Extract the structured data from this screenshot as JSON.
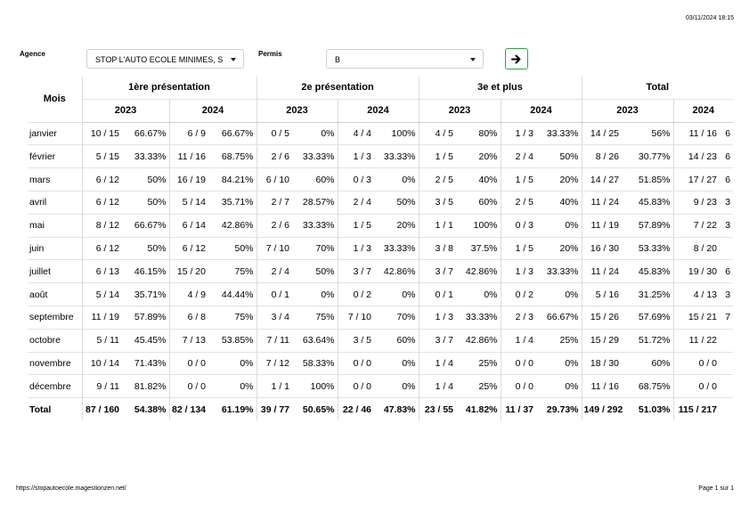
{
  "header": {
    "timestamp": "03/11/2024 18:15"
  },
  "filters": {
    "agency_label": "Agence",
    "agency_value": "STOP L'AUTO ECOLE MINIMES, S",
    "permit_label": "Permis",
    "permit_value": "B"
  },
  "table": {
    "month_header": "Mois",
    "groups": [
      "1ère présentation",
      "2e présentation",
      "3e et plus",
      "Total"
    ],
    "years": [
      "2023",
      "2024",
      "2023",
      "2024",
      "2023",
      "2024",
      "2023",
      "2024"
    ],
    "rows": [
      {
        "month": "janvier",
        "cells": [
          [
            "10 / 15",
            "66.67%"
          ],
          [
            "6 / 9",
            "66.67%"
          ],
          [
            "0 / 5",
            "0%"
          ],
          [
            "4 / 4",
            "100%"
          ],
          [
            "4 / 5",
            "80%"
          ],
          [
            "1 / 3",
            "33.33%"
          ],
          [
            "14 / 25",
            "56%"
          ],
          [
            "11 / 16",
            "6"
          ]
        ]
      },
      {
        "month": "février",
        "cells": [
          [
            "5 / 15",
            "33.33%"
          ],
          [
            "11 / 16",
            "68.75%"
          ],
          [
            "2 / 6",
            "33.33%"
          ],
          [
            "1 / 3",
            "33.33%"
          ],
          [
            "1 / 5",
            "20%"
          ],
          [
            "2 / 4",
            "50%"
          ],
          [
            "8 / 26",
            "30.77%"
          ],
          [
            "14 / 23",
            "6"
          ]
        ]
      },
      {
        "month": "mars",
        "cells": [
          [
            "6 / 12",
            "50%"
          ],
          [
            "16 / 19",
            "84.21%"
          ],
          [
            "6 / 10",
            "60%"
          ],
          [
            "0 / 3",
            "0%"
          ],
          [
            "2 / 5",
            "40%"
          ],
          [
            "1 / 5",
            "20%"
          ],
          [
            "14 / 27",
            "51.85%"
          ],
          [
            "17 / 27",
            "6"
          ]
        ]
      },
      {
        "month": "avril",
        "cells": [
          [
            "6 / 12",
            "50%"
          ],
          [
            "5 / 14",
            "35.71%"
          ],
          [
            "2 / 7",
            "28.57%"
          ],
          [
            "2 / 4",
            "50%"
          ],
          [
            "3 / 5",
            "60%"
          ],
          [
            "2 / 5",
            "40%"
          ],
          [
            "11 / 24",
            "45.83%"
          ],
          [
            "9 / 23",
            "3"
          ]
        ]
      },
      {
        "month": "mai",
        "cells": [
          [
            "8 / 12",
            "66.67%"
          ],
          [
            "6 / 14",
            "42.86%"
          ],
          [
            "2 / 6",
            "33.33%"
          ],
          [
            "1 / 5",
            "20%"
          ],
          [
            "1 / 1",
            "100%"
          ],
          [
            "0 / 3",
            "0%"
          ],
          [
            "11 / 19",
            "57.89%"
          ],
          [
            "7 / 22",
            "3"
          ]
        ]
      },
      {
        "month": "juin",
        "cells": [
          [
            "6 / 12",
            "50%"
          ],
          [
            "6 / 12",
            "50%"
          ],
          [
            "7 / 10",
            "70%"
          ],
          [
            "1 / 3",
            "33.33%"
          ],
          [
            "3 / 8",
            "37.5%"
          ],
          [
            "1 / 5",
            "20%"
          ],
          [
            "16 / 30",
            "53.33%"
          ],
          [
            "8 / 20",
            ""
          ]
        ]
      },
      {
        "month": "juillet",
        "cells": [
          [
            "6 / 13",
            "46.15%"
          ],
          [
            "15 / 20",
            "75%"
          ],
          [
            "2 / 4",
            "50%"
          ],
          [
            "3 / 7",
            "42.86%"
          ],
          [
            "3 / 7",
            "42.86%"
          ],
          [
            "1 / 3",
            "33.33%"
          ],
          [
            "11 / 24",
            "45.83%"
          ],
          [
            "19 / 30",
            "6"
          ]
        ]
      },
      {
        "month": "août",
        "cells": [
          [
            "5 / 14",
            "35.71%"
          ],
          [
            "4 / 9",
            "44.44%"
          ],
          [
            "0 / 1",
            "0%"
          ],
          [
            "0 / 2",
            "0%"
          ],
          [
            "0 / 1",
            "0%"
          ],
          [
            "0 / 2",
            "0%"
          ],
          [
            "5 / 16",
            "31.25%"
          ],
          [
            "4 / 13",
            "3"
          ]
        ]
      },
      {
        "month": "septembre",
        "cells": [
          [
            "11 / 19",
            "57.89%"
          ],
          [
            "6 / 8",
            "75%"
          ],
          [
            "3 / 4",
            "75%"
          ],
          [
            "7 / 10",
            "70%"
          ],
          [
            "1 / 3",
            "33.33%"
          ],
          [
            "2 / 3",
            "66.67%"
          ],
          [
            "15 / 26",
            "57.69%"
          ],
          [
            "15 / 21",
            "7"
          ]
        ]
      },
      {
        "month": "octobre",
        "cells": [
          [
            "5 / 11",
            "45.45%"
          ],
          [
            "7 / 13",
            "53.85%"
          ],
          [
            "7 / 11",
            "63.64%"
          ],
          [
            "3 / 5",
            "60%"
          ],
          [
            "3 / 7",
            "42.86%"
          ],
          [
            "1 / 4",
            "25%"
          ],
          [
            "15 / 29",
            "51.72%"
          ],
          [
            "11 / 22",
            ""
          ]
        ]
      },
      {
        "month": "novembre",
        "cells": [
          [
            "10 / 14",
            "71.43%"
          ],
          [
            "0 / 0",
            "0%"
          ],
          [
            "7 / 12",
            "58.33%"
          ],
          [
            "0 / 0",
            "0%"
          ],
          [
            "1 / 4",
            "25%"
          ],
          [
            "0 / 0",
            "0%"
          ],
          [
            "18 / 30",
            "60%"
          ],
          [
            "0 / 0",
            ""
          ]
        ]
      },
      {
        "month": "décembre",
        "cells": [
          [
            "9 / 11",
            "81.82%"
          ],
          [
            "0 / 0",
            "0%"
          ],
          [
            "1 / 1",
            "100%"
          ],
          [
            "0 / 0",
            "0%"
          ],
          [
            "1 / 4",
            "25%"
          ],
          [
            "0 / 0",
            "0%"
          ],
          [
            "11 / 16",
            "68.75%"
          ],
          [
            "0 / 0",
            ""
          ]
        ]
      }
    ],
    "total": {
      "month": "Total",
      "cells": [
        [
          "87 / 160",
          "54.38%"
        ],
        [
          "82 / 134",
          "61.19%"
        ],
        [
          "39 / 77",
          "50.65%"
        ],
        [
          "22 / 46",
          "47.83%"
        ],
        [
          "23 / 55",
          "41.82%"
        ],
        [
          "11 / 37",
          "29.73%"
        ],
        [
          "149 / 292",
          "51.03%"
        ],
        [
          "115 / 217",
          ""
        ]
      ]
    }
  },
  "footer": {
    "url": "https://stopautoecole.magestionzen.net/",
    "page": "Page 1 sur 1"
  },
  "icons": {
    "go": "arrow-right-icon",
    "dropdown": "caret-down-icon"
  }
}
